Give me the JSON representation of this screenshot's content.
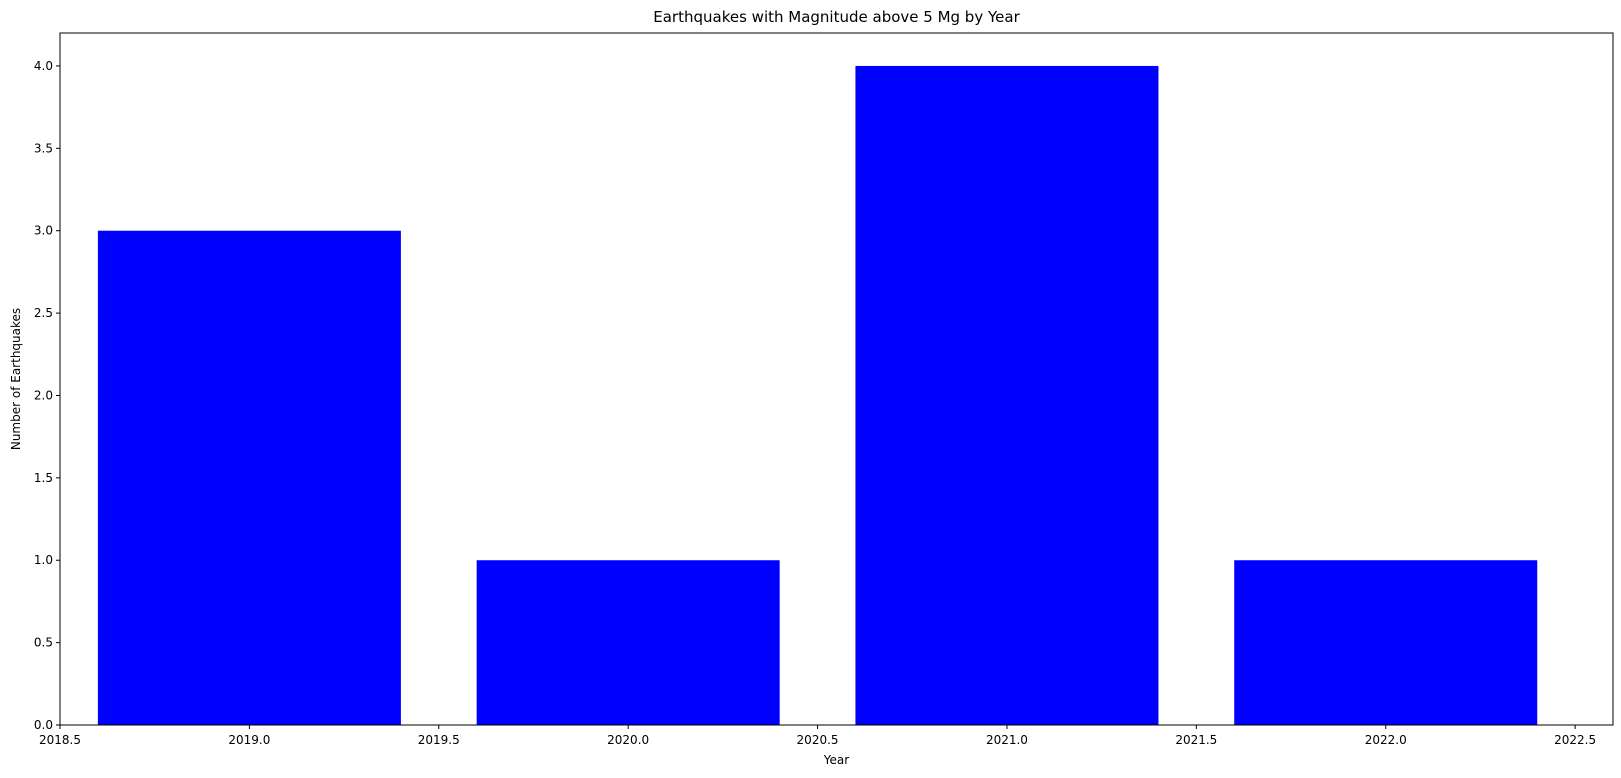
{
  "chart_data": {
    "type": "bar",
    "title": "Earthquakes with Magnitude above 5 Mg by Year",
    "xlabel": "Year",
    "ylabel": "Number of Earthquakes",
    "x": [
      2019,
      2020,
      2021,
      2022
    ],
    "values": [
      3,
      1,
      4,
      1
    ],
    "bar_width": 0.8,
    "xlim": [
      2018.5,
      2022.6
    ],
    "ylim": [
      0,
      4.2
    ],
    "x_ticks": [
      2018.5,
      2019.0,
      2019.5,
      2020.0,
      2020.5,
      2021.0,
      2021.5,
      2022.0,
      2022.5
    ],
    "x_tick_labels": [
      "2018.5",
      "2019.0",
      "2019.5",
      "2020.0",
      "2020.5",
      "2021.0",
      "2021.5",
      "2022.0",
      "2022.5"
    ],
    "y_ticks": [
      0,
      0.5,
      1.0,
      1.5,
      2.0,
      2.5,
      3.0,
      3.5,
      4.0
    ],
    "y_tick_labels": [
      "0.0",
      "0.5",
      "1.0",
      "1.5",
      "2.0",
      "2.5",
      "3.0",
      "3.5",
      "4.0"
    ],
    "grid": false,
    "legend": "none",
    "bar_color": "#0000ff"
  }
}
